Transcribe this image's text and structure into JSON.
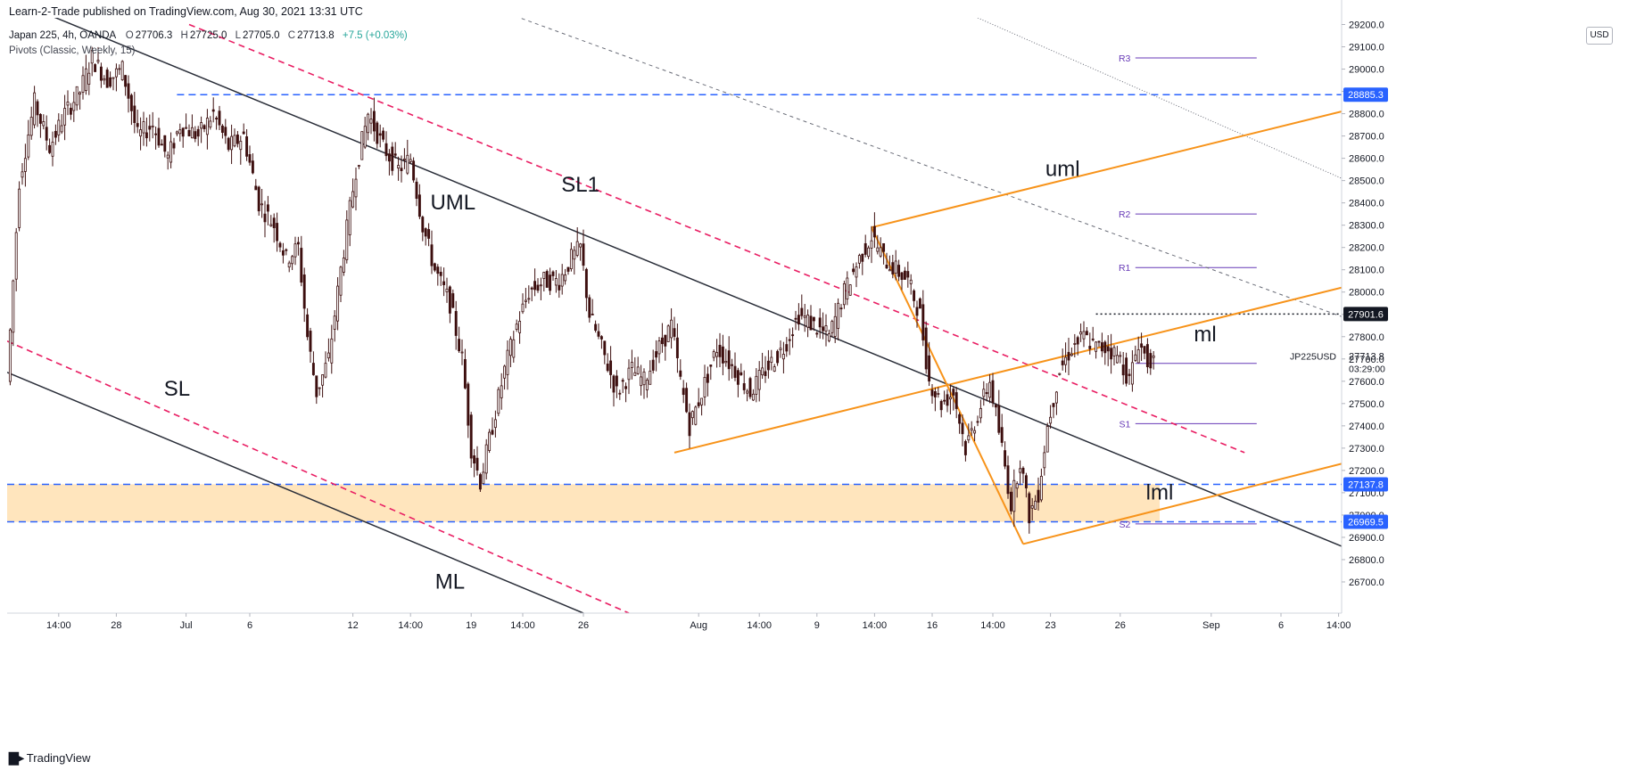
{
  "header": {
    "published": "Learn-2-Trade published on TradingView.com, Aug 30, 2021 13:31 UTC",
    "symbol_line": "Japan 225, 4h, OANDA",
    "ohlc": {
      "o_label": "O",
      "o": "27706.3",
      "h_label": "H",
      "h": "27725.0",
      "l_label": "L",
      "l": "27705.0",
      "c_label": "C",
      "c": "27713.8",
      "change": "+7.5 (+0.03%)"
    },
    "indicator": "Pivots (Classic, Weekly, 15)"
  },
  "currency_button": "USD",
  "footer_logo": "TradingView",
  "colors": {
    "up": "#ffffff",
    "down": "#3d0f0f",
    "wick": "#3d0f0f",
    "pitchfork": "#f7931a",
    "trend": "#2a2e39",
    "sl": "#e91e63",
    "level": "#2962ff",
    "zone": "#ffe0b2",
    "pivot": "#673ab7",
    "price_tag": "#131722"
  },
  "chart_data": {
    "type": "candlestick",
    "symbol": "JP225USD",
    "timeframe": "4h",
    "y_axis": {
      "range": [
        26560,
        29230
      ],
      "ticks": [
        26700,
        26800,
        26900,
        27000,
        27100,
        27200,
        27300,
        27400,
        27500,
        27600,
        27700,
        27800,
        27900,
        28000,
        28100,
        28200,
        28300,
        28400,
        28500,
        28600,
        28700,
        28800,
        28900,
        29000,
        29100,
        29200
      ],
      "tick_labels": [
        "26700.0",
        "26800.0",
        "26900.0",
        "27000.0",
        "27100.0",
        "27200.0",
        "27300.0",
        "27400.0",
        "27500.0",
        "27600.0",
        "27700.0",
        "27800.0",
        "27900.0",
        "28000.0",
        "28100.0",
        "28200.0",
        "28300.0",
        "28400.0",
        "28500.0",
        "28600.0",
        "28700.0",
        "28800.0",
        "28900.0",
        "29000.0",
        "29100.0",
        "29200.0"
      ]
    },
    "x_axis": {
      "range": [
        0,
        440
      ],
      "ticks": [
        {
          "bar": 17,
          "label": "14:00"
        },
        {
          "bar": 36,
          "label": "28"
        },
        {
          "bar": 59,
          "label": "Jul"
        },
        {
          "bar": 80,
          "label": "6"
        },
        {
          "bar": 114,
          "label": "12"
        },
        {
          "bar": 133,
          "label": "14:00"
        },
        {
          "bar": 153,
          "label": "19"
        },
        {
          "bar": 170,
          "label": "14:00"
        },
        {
          "bar": 190,
          "label": "26"
        },
        {
          "bar": 228,
          "label": "Aug"
        },
        {
          "bar": 248,
          "label": "14:00"
        },
        {
          "bar": 267,
          "label": "9"
        },
        {
          "bar": 286,
          "label": "14:00"
        },
        {
          "bar": 305,
          "label": "16"
        },
        {
          "bar": 325,
          "label": "14:00"
        },
        {
          "bar": 344,
          "label": "23"
        },
        {
          "bar": 367,
          "label": "26"
        },
        {
          "bar": 397,
          "label": "Sep"
        },
        {
          "bar": 420,
          "label": "6"
        },
        {
          "bar": 439,
          "label": "14:00"
        }
      ]
    },
    "price_path": [
      [
        0,
        27600
      ],
      [
        4,
        28500
      ],
      [
        9,
        28850
      ],
      [
        14,
        28650
      ],
      [
        19,
        28800
      ],
      [
        24,
        28900
      ],
      [
        28,
        29050
      ],
      [
        33,
        28950
      ],
      [
        38,
        29000
      ],
      [
        43,
        28700
      ],
      [
        48,
        28750
      ],
      [
        53,
        28600
      ],
      [
        57,
        28750
      ],
      [
        63,
        28700
      ],
      [
        68,
        28800
      ],
      [
        73,
        28650
      ],
      [
        78,
        28700
      ],
      [
        83,
        28400
      ],
      [
        88,
        28300
      ],
      [
        92,
        28150
      ],
      [
        96,
        28200
      ],
      [
        99,
        27800
      ],
      [
        102,
        27550
      ],
      [
        106,
        27700
      ],
      [
        110,
        28100
      ],
      [
        115,
        28550
      ],
      [
        119,
        28800
      ],
      [
        124,
        28650
      ],
      [
        129,
        28550
      ],
      [
        133,
        28600
      ],
      [
        137,
        28300
      ],
      [
        141,
        28100
      ],
      [
        146,
        27950
      ],
      [
        150,
        27700
      ],
      [
        153,
        27300
      ],
      [
        156,
        27150
      ],
      [
        160,
        27400
      ],
      [
        164,
        27650
      ],
      [
        168,
        27850
      ],
      [
        172,
        28000
      ],
      [
        177,
        28050
      ],
      [
        182,
        28050
      ],
      [
        186,
        28150
      ],
      [
        189,
        28200
      ],
      [
        192,
        27900
      ],
      [
        196,
        27750
      ],
      [
        201,
        27550
      ],
      [
        206,
        27650
      ],
      [
        210,
        27600
      ],
      [
        215,
        27750
      ],
      [
        219,
        27850
      ],
      [
        222,
        27600
      ],
      [
        225,
        27400
      ],
      [
        229,
        27550
      ],
      [
        234,
        27750
      ],
      [
        240,
        27650
      ],
      [
        245,
        27550
      ],
      [
        250,
        27650
      ],
      [
        256,
        27750
      ],
      [
        261,
        27900
      ],
      [
        266,
        27850
      ],
      [
        271,
        27800
      ],
      [
        276,
        28000
      ],
      [
        281,
        28150
      ],
      [
        285,
        28250
      ],
      [
        289,
        28150
      ],
      [
        293,
        28100
      ],
      [
        297,
        28050
      ],
      [
        301,
        27900
      ],
      [
        304,
        27600
      ],
      [
        308,
        27500
      ],
      [
        312,
        27550
      ],
      [
        316,
        27300
      ],
      [
        320,
        27450
      ],
      [
        324,
        27600
      ],
      [
        328,
        27300
      ],
      [
        331,
        27050
      ],
      [
        334,
        27250
      ],
      [
        337,
        27000
      ],
      [
        340,
        27100
      ],
      [
        343,
        27400
      ],
      [
        347,
        27650
      ],
      [
        351,
        27750
      ],
      [
        355,
        27800
      ],
      [
        359,
        27750
      ],
      [
        363,
        27750
      ],
      [
        367,
        27700
      ],
      [
        370,
        27600
      ],
      [
        373,
        27780
      ],
      [
        376,
        27690
      ],
      [
        378,
        27714
      ]
    ],
    "last_price": "27713.8",
    "countdown": "03:29:00",
    "price_tags": [
      {
        "value": 28885.3,
        "label": "28885.3",
        "kind": "level"
      },
      {
        "value": 27901.6,
        "label": "27901.6",
        "kind": "last-high"
      },
      {
        "value": 27137.8,
        "label": "27137.8",
        "kind": "level"
      },
      {
        "value": 26969.5,
        "label": "26969.5",
        "kind": "level"
      }
    ],
    "horizontal_levels": [
      {
        "value": 28885.3,
        "style": "dashed",
        "color": "level"
      },
      {
        "value": 27137.8,
        "style": "dashed",
        "color": "level"
      },
      {
        "value": 26969.5,
        "style": "dashed",
        "color": "level"
      }
    ],
    "demand_zone": {
      "top": 27137.8,
      "bottom": 26969.5
    },
    "dotted_high": {
      "value": 27901.6,
      "from_bar": 359
    },
    "pivots": [
      {
        "label": "R3",
        "value": 29050
      },
      {
        "label": "R2",
        "value": 28350
      },
      {
        "label": "R1",
        "value": 28110
      },
      {
        "label": "P",
        "value": 27680
      },
      {
        "label": "S1",
        "value": 27410
      },
      {
        "label": "S2",
        "value": 26960
      }
    ],
    "annotations": [
      {
        "text": "UML",
        "bar": 147,
        "value": 28370
      },
      {
        "text": "SL1",
        "bar": 189,
        "value": 28450
      },
      {
        "text": "SL",
        "bar": 56,
        "value": 27535
      },
      {
        "text": "ML",
        "bar": 146,
        "value": 26670
      },
      {
        "text": "uml",
        "bar": 348,
        "value": 28520
      },
      {
        "text": "ml",
        "bar": 395,
        "value": 27780
      },
      {
        "text": "lml",
        "bar": 380,
        "value": 27070
      }
    ],
    "label_fontsize": 24
  }
}
